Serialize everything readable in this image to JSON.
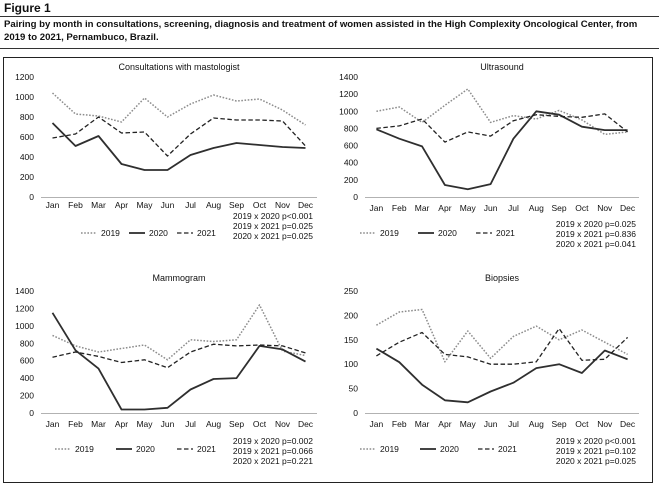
{
  "figure_label": "Figure 1",
  "caption": "Pairing by month in consultations, screening, diagnosis and treatment of women assisted in the High Complexity Oncological Center, from 2019 to 2021, Pernambuco, Brazil.",
  "chart_data": [
    {
      "type": "line",
      "title": "Consultations with mastologist",
      "categories": [
        "Jan",
        "Feb",
        "Mar",
        "Apr",
        "May",
        "Jun",
        "Jul",
        "Aug",
        "Sep",
        "Oct",
        "Nov",
        "Dec"
      ],
      "ylim": [
        0,
        1200
      ],
      "yticks": [
        "0",
        "200",
        "400",
        "600",
        "800",
        "1000",
        "1200"
      ],
      "grid": false,
      "series": [
        {
          "name": "2019",
          "values": [
            1040,
            830,
            810,
            750,
            990,
            800,
            930,
            1020,
            960,
            980,
            870,
            720
          ]
        },
        {
          "name": "2020",
          "values": [
            740,
            510,
            610,
            330,
            270,
            270,
            420,
            490,
            540,
            520,
            500,
            490
          ]
        },
        {
          "name": "2021",
          "values": [
            590,
            630,
            800,
            640,
            650,
            410,
            630,
            790,
            770,
            770,
            760,
            510
          ]
        }
      ],
      "annotations": [
        "2019 x 2020 p<0.001",
        "2019 x 2021 p=0.025",
        "2020 x 2021 p=0.025"
      ]
    },
    {
      "type": "line",
      "title": "Ultrasound",
      "categories": [
        "Jan",
        "Feb",
        "Mar",
        "Apr",
        "May",
        "Jun",
        "Jul",
        "Aug",
        "Sep",
        "Oct",
        "Nov",
        "Dec"
      ],
      "ylim": [
        0,
        1400
      ],
      "yticks": [
        "0",
        "200",
        "400",
        "600",
        "800",
        "1000",
        "1200",
        "1400"
      ],
      "grid": false,
      "series": [
        {
          "name": "2019",
          "values": [
            1000,
            1050,
            870,
            1070,
            1260,
            870,
            950,
            910,
            1010,
            900,
            730,
            760
          ]
        },
        {
          "name": "2020",
          "values": [
            790,
            680,
            590,
            140,
            90,
            150,
            680,
            1000,
            960,
            820,
            780,
            780
          ]
        },
        {
          "name": "2021",
          "values": [
            800,
            830,
            910,
            640,
            760,
            710,
            890,
            960,
            940,
            930,
            970,
            760
          ]
        }
      ],
      "annotations": [
        "2019 x 2020 p=0.025",
        "2019 x 2021 p=0.836",
        "2020 x 2021 p=0.041"
      ]
    },
    {
      "type": "line",
      "title": "Mammogram",
      "categories": [
        "Jan",
        "Feb",
        "Mar",
        "Apr",
        "May",
        "Jun",
        "Jul",
        "Aug",
        "Sep",
        "Oct",
        "Nov",
        "Dec"
      ],
      "ylim": [
        0,
        1400
      ],
      "yticks": [
        "0",
        "200",
        "400",
        "600",
        "800",
        "1000",
        "1200",
        "1400"
      ],
      "grid": false,
      "series": [
        {
          "name": "2019",
          "values": [
            890,
            770,
            700,
            740,
            780,
            610,
            840,
            820,
            840,
            1240,
            710,
            660
          ]
        },
        {
          "name": "2020",
          "values": [
            1150,
            720,
            510,
            40,
            40,
            60,
            270,
            390,
            400,
            770,
            730,
            590
          ]
        },
        {
          "name": "2021",
          "values": [
            640,
            700,
            650,
            580,
            610,
            520,
            700,
            790,
            770,
            780,
            770,
            690
          ]
        }
      ],
      "annotations": [
        "2019 x 2020 p=0.002",
        "2019 x 2021 p=0.066",
        "2020 x 2021 p=0.221"
      ]
    },
    {
      "type": "line",
      "title": "Biopsies",
      "categories": [
        "Jan",
        "Feb",
        "Mar",
        "Apr",
        "May",
        "Jun",
        "Jul",
        "Aug",
        "Sep",
        "Oct",
        "Nov",
        "Dec"
      ],
      "ylim": [
        0,
        250
      ],
      "yticks": [
        "0",
        "50",
        "100",
        "150",
        "200",
        "250"
      ],
      "grid": false,
      "series": [
        {
          "name": "2019",
          "values": [
            180,
            207,
            212,
            105,
            168,
            112,
            157,
            178,
            150,
            170,
            145,
            120
          ]
        },
        {
          "name": "2020",
          "values": [
            132,
            104,
            58,
            26,
            22,
            44,
            62,
            92,
            100,
            82,
            128,
            110
          ]
        },
        {
          "name": "2021",
          "values": [
            117,
            145,
            165,
            120,
            115,
            100,
            100,
            105,
            173,
            108,
            110,
            155
          ]
        }
      ],
      "annotations": [
        "2019 x 2020 p<0.001",
        "2019 x 2021 p=0.102",
        "2020 x 2021 p=0.025"
      ]
    }
  ],
  "series_styles": {
    "2019": {
      "color": "#8c8c8c",
      "dash": "1.6 1.6",
      "width": 1.5
    },
    "2020": {
      "color": "#2f2f2f",
      "dash": "",
      "width": 1.8
    },
    "2021": {
      "color": "#222222",
      "dash": "4.5 2.5",
      "width": 1.3
    }
  },
  "colors": {
    "axis": "#999999",
    "text": "#111111",
    "frame": "#222222"
  }
}
